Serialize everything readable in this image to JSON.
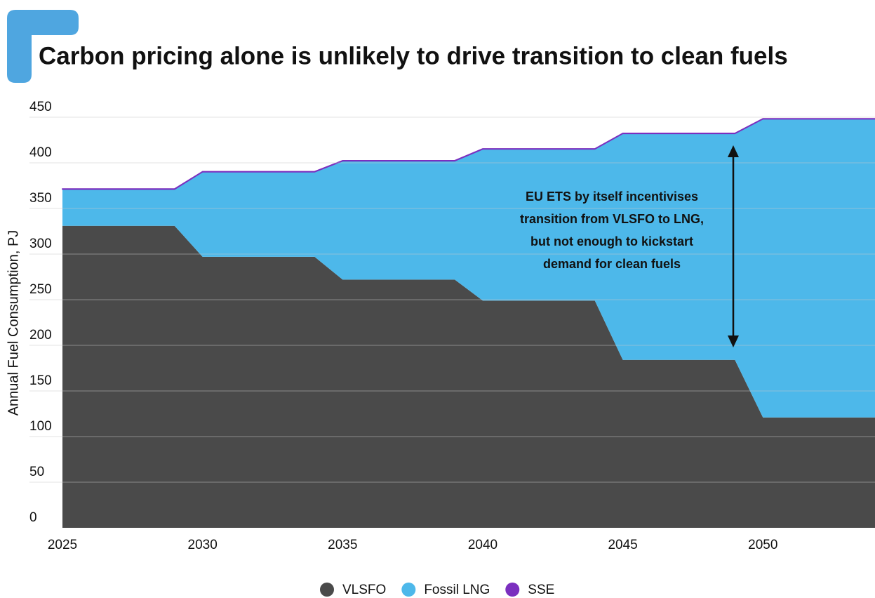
{
  "chart_data": {
    "type": "stacked_area",
    "title": "Carbon pricing alone is unlikely to drive transition to clean fuels",
    "y_label": "Annual Fuel Consumption, PJ",
    "annotation": [
      "EU ETS by itself incentivises",
      "transition from VLSFO to LNG,",
      "but not enough to kickstart",
      "demand for clean fuels"
    ],
    "x": [
      2025,
      2026,
      2027,
      2028,
      2029,
      2030,
      2031,
      2032,
      2033,
      2034,
      2035,
      2036,
      2037,
      2038,
      2039,
      2040,
      2041,
      2042,
      2043,
      2044,
      2045,
      2046,
      2047,
      2048,
      2049,
      2050,
      2051,
      2052,
      2053,
      2054
    ],
    "series": [
      {
        "name": "VLSFO",
        "color": "#4a4a4a",
        "values": [
          331,
          331,
          331,
          331,
          331,
          297,
          297,
          297,
          297,
          297,
          272,
          272,
          272,
          272,
          272,
          249,
          249,
          249,
          249,
          249,
          184,
          184,
          184,
          184,
          184,
          121,
          121,
          121,
          121,
          121
        ]
      },
      {
        "name": "Fossil LNG",
        "color": "#4db8ea",
        "values": [
          40,
          40,
          40,
          40,
          40,
          93,
          93,
          93,
          93,
          93,
          130,
          130,
          130,
          130,
          130,
          166,
          166,
          166,
          166,
          166,
          248,
          248,
          248,
          248,
          248,
          327,
          327,
          327,
          327,
          327
        ]
      },
      {
        "name": "SSE",
        "color": "#7b2fbf",
        "values": [
          0.5,
          0.5,
          0.5,
          0.5,
          0.5,
          0.5,
          0.5,
          0.5,
          0.5,
          0.5,
          0.5,
          0.5,
          0.5,
          0.5,
          0.5,
          0.5,
          0.5,
          0.5,
          0.5,
          0.5,
          0.5,
          0.5,
          0.5,
          0.5,
          0.5,
          0.5,
          0.5,
          0.5,
          0.5,
          0.5
        ]
      }
    ],
    "xlim": [
      2025,
      2054
    ],
    "xticks": [
      2025,
      2030,
      2035,
      2040,
      2045,
      2050
    ],
    "ylim": [
      0,
      450
    ],
    "yticks": [
      0,
      50,
      100,
      150,
      200,
      250,
      300,
      350,
      400,
      450
    ],
    "grid": true,
    "legend": "bottom"
  }
}
